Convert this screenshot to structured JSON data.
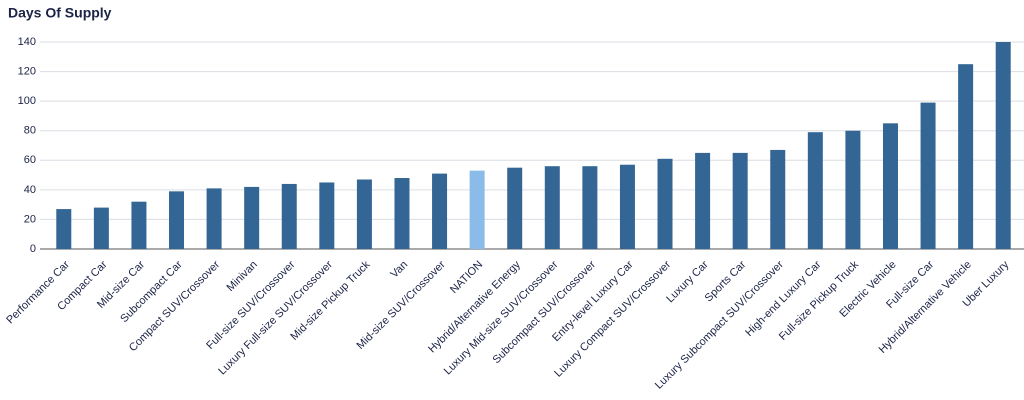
{
  "chart_data": {
    "type": "bar",
    "title": "Days Of Supply",
    "categories": [
      "Performance Car",
      "Compact Car",
      "Mid-size Car",
      "Subcompact Car",
      "Compact SUV/Crossover",
      "Minivan",
      "Full-size SUV/Crossover",
      "Luxury Full-size SUV/Crossover",
      "Mid-size Pickup Truck",
      "Van",
      "Mid-size SUV/Crossover",
      "NATION",
      "Hybrid/Alternative Energy",
      "Luxury Mid-size SUV/Crossover",
      "Subcompact SUV/Crossover",
      "Entry-level Luxury Car",
      "Luxury Compact SUV/Crossover",
      "Luxury Car",
      "Sports Car",
      "Luxury Subcompact SUV/Crossover",
      "High-end Luxury Car",
      "Full-size Pickup Truck",
      "Electric Vehicle",
      "Full-size Car",
      "Hybrid/Alternative Vehicle",
      "Uber Luxury"
    ],
    "values": [
      27,
      28,
      32,
      39,
      41,
      42,
      44,
      45,
      47,
      48,
      51,
      53,
      55,
      56,
      56,
      57,
      61,
      65,
      65,
      67,
      79,
      80,
      85,
      99,
      125,
      140
    ],
    "colors": [
      "#336694",
      "#336694",
      "#336694",
      "#336694",
      "#336694",
      "#336694",
      "#336694",
      "#336694",
      "#336694",
      "#336694",
      "#336694",
      "#8bbbe8",
      "#336694",
      "#336694",
      "#336694",
      "#336694",
      "#336694",
      "#336694",
      "#336694",
      "#336694",
      "#336694",
      "#336694",
      "#336694",
      "#336694",
      "#336694",
      "#336694"
    ],
    "ylim": [
      0,
      140
    ],
    "yticks": [
      0,
      20,
      40,
      60,
      80,
      100,
      120,
      140
    ],
    "grid": true
  }
}
